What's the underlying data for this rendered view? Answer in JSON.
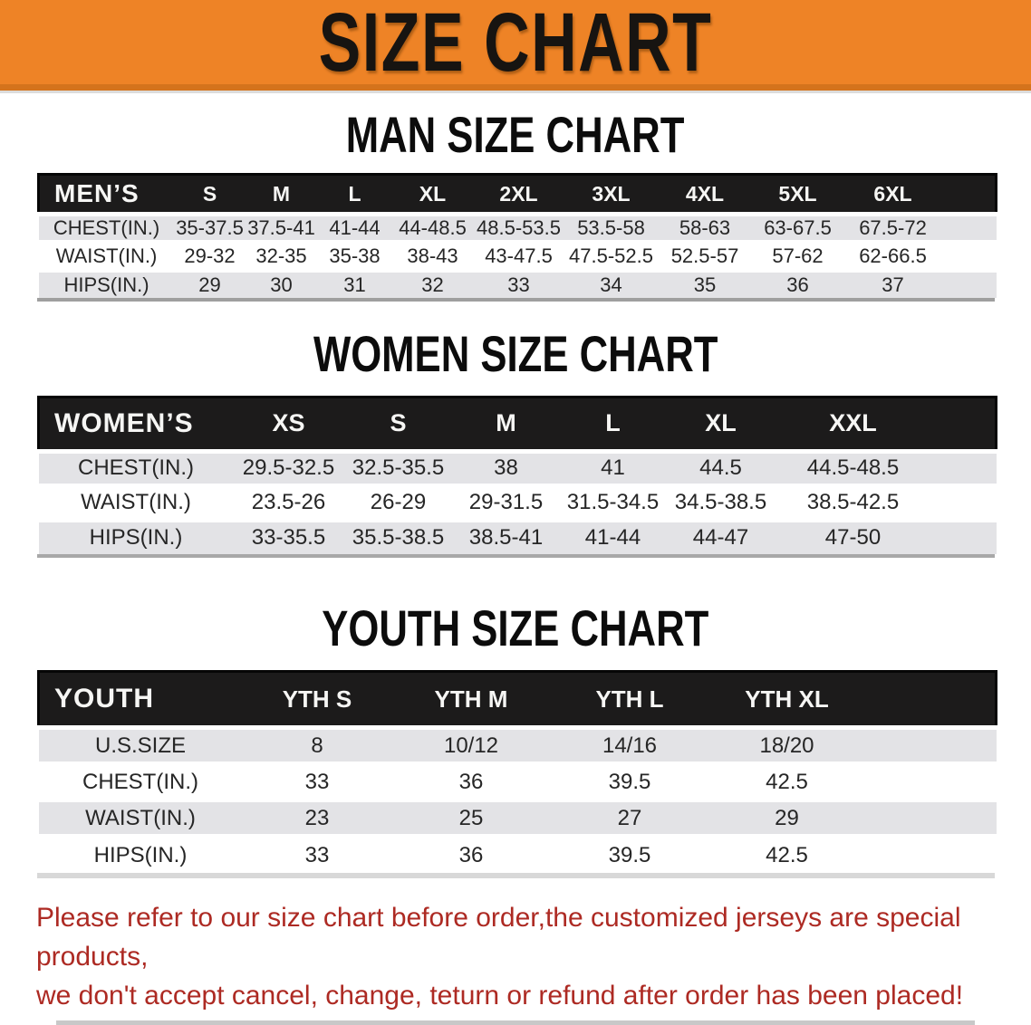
{
  "banner": {
    "title": "SIZE CHART",
    "bg_color": "#EE8326",
    "text_color": "#171411"
  },
  "sections": [
    {
      "heading": "MAN SIZE CHART",
      "header_label": "MEN’S",
      "columns": [
        "S",
        "M",
        "L",
        "XL",
        "2XL",
        "3XL",
        "4XL",
        "5XL",
        "6XL"
      ],
      "rows": [
        {
          "label": "CHEST(IN.)",
          "values": [
            "35-37.5",
            "37.5-41",
            "41-44",
            "44-48.5",
            "48.5-53.5",
            "53.5-58",
            "58-63",
            "63-67.5",
            "67.5-72"
          ]
        },
        {
          "label": "WAIST(IN.)",
          "values": [
            "29-32",
            "32-35",
            "35-38",
            "38-43",
            "43-47.5",
            "47.5-52.5",
            "52.5-57",
            "57-62",
            "62-66.5"
          ]
        },
        {
          "label": "HIPS(IN.)",
          "values": [
            "29",
            "30",
            "31",
            "32",
            "33",
            "34",
            "35",
            "36",
            "37"
          ]
        }
      ]
    },
    {
      "heading": "WOMEN SIZE CHART",
      "header_label": "WOMEN’S",
      "columns": [
        "XS",
        "S",
        "M",
        "L",
        "XL",
        "XXL"
      ],
      "rows": [
        {
          "label": "CHEST(IN.)",
          "values": [
            "29.5-32.5",
            "32.5-35.5",
            "38",
            "41",
            "44.5",
            "44.5-48.5"
          ]
        },
        {
          "label": "WAIST(IN.)",
          "values": [
            "23.5-26",
            "26-29",
            "29-31.5",
            "31.5-34.5",
            "34.5-38.5",
            "38.5-42.5"
          ]
        },
        {
          "label": "HIPS(IN.)",
          "values": [
            "33-35.5",
            "35.5-38.5",
            "38.5-41",
            "41-44",
            "44-47",
            "47-50"
          ]
        }
      ]
    },
    {
      "heading": "YOUTH SIZE CHART",
      "header_label": "YOUTH",
      "columns": [
        "YTH S",
        "YTH M",
        "YTH L",
        "YTH XL"
      ],
      "rows": [
        {
          "label": "U.S.SIZE",
          "values": [
            "8",
            "10/12",
            "14/16",
            "18/20"
          ]
        },
        {
          "label": "CHEST(IN.)",
          "values": [
            "33",
            "36",
            "39.5",
            "42.5"
          ]
        },
        {
          "label": "WAIST(IN.)",
          "values": [
            "23",
            "25",
            "27",
            "29"
          ]
        },
        {
          "label": "HIPS(IN.)",
          "values": [
            "33",
            "36",
            "39.5",
            "42.5"
          ]
        }
      ]
    }
  ],
  "footer": {
    "line1": "Please refer to our size chart before order,the customized jerseys are special products,",
    "line2": "we don't accept cancel, change, teturn or refund after order has been placed!",
    "text_color": "#AD2A23"
  },
  "colors": {
    "banner_orange": "#EE8326",
    "banner_orange_dark": "#D4731C",
    "header_bar_black": "#1C1B1B",
    "row_gray": "#E3E3E6",
    "notice_red": "#AD2A23"
  },
  "chart_data": [
    {
      "type": "table",
      "title": "MAN SIZE CHART",
      "header": [
        "MEN’S",
        "S",
        "M",
        "L",
        "XL",
        "2XL",
        "3XL",
        "4XL",
        "5XL",
        "6XL"
      ],
      "rows": [
        [
          "CHEST(IN.)",
          "35-37.5",
          "37.5-41",
          "41-44",
          "44-48.5",
          "48.5-53.5",
          "53.5-58",
          "58-63",
          "63-67.5",
          "67.5-72"
        ],
        [
          "WAIST(IN.)",
          "29-32",
          "32-35",
          "35-38",
          "38-43",
          "43-47.5",
          "47.5-52.5",
          "52.5-57",
          "57-62",
          "62-66.5"
        ],
        [
          "HIPS(IN.)",
          "29",
          "30",
          "31",
          "32",
          "33",
          "34",
          "35",
          "36",
          "37"
        ]
      ]
    },
    {
      "type": "table",
      "title": "WOMEN SIZE CHART",
      "header": [
        "WOMEN’S",
        "XS",
        "S",
        "M",
        "L",
        "XL",
        "XXL"
      ],
      "rows": [
        [
          "CHEST(IN.)",
          "29.5-32.5",
          "32.5-35.5",
          "38",
          "41",
          "44.5",
          "44.5-48.5"
        ],
        [
          "WAIST(IN.)",
          "23.5-26",
          "26-29",
          "29-31.5",
          "31.5-34.5",
          "34.5-38.5",
          "38.5-42.5"
        ],
        [
          "HIPS(IN.)",
          "33-35.5",
          "35.5-38.5",
          "38.5-41",
          "41-44",
          "44-47",
          "47-50"
        ]
      ]
    },
    {
      "type": "table",
      "title": "YOUTH SIZE CHART",
      "header": [
        "YOUTH",
        "YTH S",
        "YTH M",
        "YTH L",
        "YTH XL"
      ],
      "rows": [
        [
          "U.S.SIZE",
          "8",
          "10/12",
          "14/16",
          "18/20"
        ],
        [
          "CHEST(IN.)",
          "33",
          "36",
          "39.5",
          "42.5"
        ],
        [
          "WAIST(IN.)",
          "23",
          "25",
          "27",
          "29"
        ],
        [
          "HIPS(IN.)",
          "33",
          "36",
          "39.5",
          "42.5"
        ]
      ]
    }
  ]
}
